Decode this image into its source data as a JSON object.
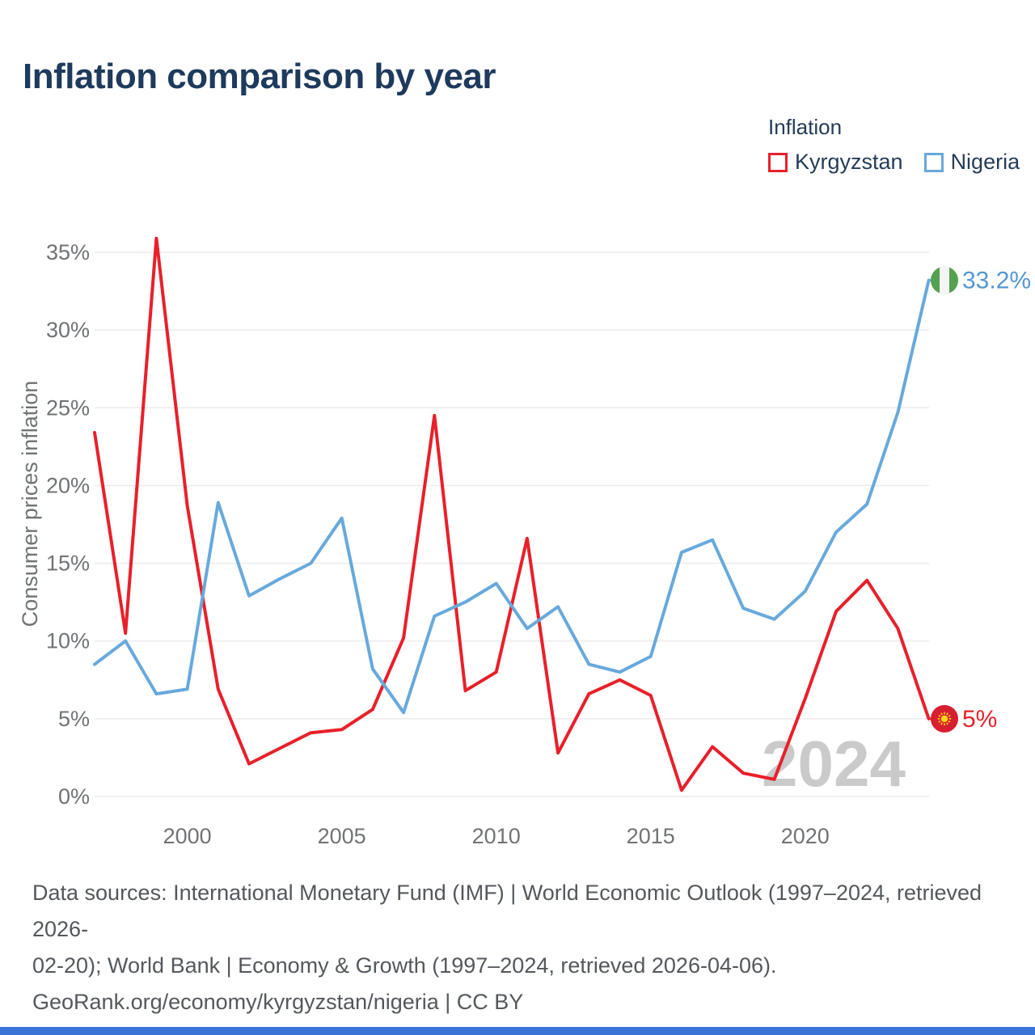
{
  "title": "Inflation comparison by year",
  "legend": {
    "title": "Inflation",
    "items": [
      {
        "label": "Kyrgyzstan",
        "color": "#e8202a"
      },
      {
        "label": "Nigeria",
        "color": "#68a9dc"
      }
    ]
  },
  "y_axis": {
    "label": "Consumer prices inflation",
    "tick_labels": [
      "0%",
      "5%",
      "10%",
      "15%",
      "20%",
      "25%",
      "30%",
      "35%"
    ]
  },
  "x_axis": {
    "tick_labels": [
      "2000",
      "2005",
      "2010",
      "2015",
      "2020"
    ]
  },
  "watermark": "2024",
  "end_labels": {
    "nigeria": "33.2%",
    "kyrgyzstan": "5%"
  },
  "flag_colors": {
    "kyrgyzstan": {
      "base": "#d81e31",
      "emblem": "#f9d616"
    },
    "nigeria": {
      "base": "#54a151",
      "stripe": "#f5f5f5"
    }
  },
  "footer": {
    "lines": [
      "Data sources: International Monetary Fund (IMF) | World Economic Outlook (1997–2024, retrieved 2026-",
      "02-20); World Bank | Economy & Growth (1997–2024, retrieved 2026-04-06).",
      "GeoRank.org/economy/kyrgyzstan/nigeria | CC BY"
    ]
  },
  "chart_data": {
    "type": "line",
    "title": "Inflation comparison by year",
    "xlabel": "Year",
    "ylabel": "Consumer prices inflation",
    "x": [
      1997,
      1998,
      1999,
      2000,
      2001,
      2002,
      2003,
      2004,
      2005,
      2006,
      2007,
      2008,
      2009,
      2010,
      2011,
      2012,
      2013,
      2014,
      2015,
      2016,
      2017,
      2018,
      2019,
      2020,
      2021,
      2022,
      2023,
      2024
    ],
    "series": [
      {
        "name": "Kyrgyzstan",
        "color": "#e8202a",
        "values": [
          23.4,
          10.5,
          35.9,
          18.7,
          6.9,
          2.1,
          3.1,
          4.1,
          4.3,
          5.6,
          10.2,
          24.5,
          6.8,
          8.0,
          16.6,
          2.8,
          6.6,
          7.5,
          6.5,
          0.4,
          3.2,
          1.5,
          1.1,
          6.3,
          11.9,
          13.9,
          10.8,
          5.0
        ]
      },
      {
        "name": "Nigeria",
        "color": "#68a9dc",
        "values": [
          8.5,
          10.0,
          6.6,
          6.9,
          18.9,
          12.9,
          14.0,
          15.0,
          17.9,
          8.2,
          5.4,
          11.6,
          12.5,
          13.7,
          10.8,
          12.2,
          8.5,
          8.0,
          9.0,
          15.7,
          16.5,
          12.1,
          11.4,
          13.2,
          17.0,
          18.8,
          24.7,
          33.2
        ]
      }
    ],
    "ylim": [
      0,
      37
    ],
    "xlim": [
      1997,
      2024
    ],
    "y_ticks_percent": [
      0,
      5,
      10,
      15,
      20,
      25,
      30,
      35
    ],
    "x_ticks": [
      2000,
      2005,
      2010,
      2015,
      2020
    ],
    "grid": "horizontal",
    "legend_position": "top-right",
    "end_value_labels": [
      {
        "series": "Nigeria",
        "text": "33.2%"
      },
      {
        "series": "Kyrgyzstan",
        "text": "5%"
      }
    ]
  }
}
